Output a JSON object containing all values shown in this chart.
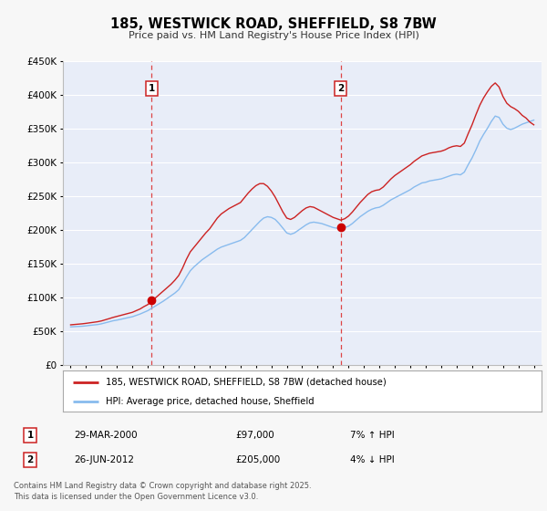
{
  "title": "185, WESTWICK ROAD, SHEFFIELD, S8 7BW",
  "subtitle": "Price paid vs. HM Land Registry's House Price Index (HPI)",
  "background_color": "#f7f7f7",
  "plot_bg_color": "#e8edf8",
  "grid_color": "#ffffff",
  "ylim": [
    0,
    450000
  ],
  "yticks": [
    0,
    50000,
    100000,
    150000,
    200000,
    250000,
    300000,
    350000,
    400000,
    450000
  ],
  "xlim_start": 1994.5,
  "xlim_end": 2025.5,
  "xticks": [
    1995,
    1996,
    1997,
    1998,
    1999,
    2000,
    2001,
    2002,
    2003,
    2004,
    2005,
    2006,
    2007,
    2008,
    2009,
    2010,
    2011,
    2012,
    2013,
    2014,
    2015,
    2016,
    2017,
    2018,
    2019,
    2020,
    2021,
    2022,
    2023,
    2024,
    2025
  ],
  "marker1_x": 2000.24,
  "marker1_y": 97000,
  "marker1_label": "1",
  "marker1_date": "29-MAR-2000",
  "marker1_price": "£97,000",
  "marker1_hpi": "7% ↑ HPI",
  "marker2_x": 2012.49,
  "marker2_y": 205000,
  "marker2_label": "2",
  "marker2_date": "26-JUN-2012",
  "marker2_price": "£205,000",
  "marker2_hpi": "4% ↓ HPI",
  "vline_color": "#dd4444",
  "marker_color": "#cc0000",
  "hpi_line_color": "#88bbee",
  "price_line_color": "#cc2222",
  "legend_line1": "185, WESTWICK ROAD, SHEFFIELD, S8 7BW (detached house)",
  "legend_line2": "HPI: Average price, detached house, Sheffield",
  "footer": "Contains HM Land Registry data © Crown copyright and database right 2025.\nThis data is licensed under the Open Government Licence v3.0.",
  "hpi_data": [
    [
      1995.0,
      57000
    ],
    [
      1995.25,
      57300
    ],
    [
      1995.5,
      57600
    ],
    [
      1995.75,
      57900
    ],
    [
      1996.0,
      58500
    ],
    [
      1996.25,
      59200
    ],
    [
      1996.5,
      59800
    ],
    [
      1996.75,
      60400
    ],
    [
      1997.0,
      61500
    ],
    [
      1997.25,
      63000
    ],
    [
      1997.5,
      64500
    ],
    [
      1997.75,
      66000
    ],
    [
      1998.0,
      67000
    ],
    [
      1998.25,
      68200
    ],
    [
      1998.5,
      69500
    ],
    [
      1998.75,
      70800
    ],
    [
      1999.0,
      72000
    ],
    [
      1999.25,
      74000
    ],
    [
      1999.5,
      76000
    ],
    [
      1999.75,
      78500
    ],
    [
      2000.0,
      81000
    ],
    [
      2000.25,
      84500
    ],
    [
      2000.5,
      88000
    ],
    [
      2000.75,
      91500
    ],
    [
      2001.0,
      95000
    ],
    [
      2001.25,
      99000
    ],
    [
      2001.5,
      103000
    ],
    [
      2001.75,
      107000
    ],
    [
      2002.0,
      112000
    ],
    [
      2002.25,
      121000
    ],
    [
      2002.5,
      131000
    ],
    [
      2002.75,
      140000
    ],
    [
      2003.0,
      146000
    ],
    [
      2003.25,
      151000
    ],
    [
      2003.5,
      156000
    ],
    [
      2003.75,
      160000
    ],
    [
      2004.0,
      164000
    ],
    [
      2004.25,
      168000
    ],
    [
      2004.5,
      172000
    ],
    [
      2004.75,
      175000
    ],
    [
      2005.0,
      177000
    ],
    [
      2005.25,
      179000
    ],
    [
      2005.5,
      181000
    ],
    [
      2005.75,
      183000
    ],
    [
      2006.0,
      185000
    ],
    [
      2006.25,
      189000
    ],
    [
      2006.5,
      195000
    ],
    [
      2006.75,
      201000
    ],
    [
      2007.0,
      207000
    ],
    [
      2007.25,
      213000
    ],
    [
      2007.5,
      218000
    ],
    [
      2007.75,
      220000
    ],
    [
      2008.0,
      219000
    ],
    [
      2008.25,
      216000
    ],
    [
      2008.5,
      210000
    ],
    [
      2008.75,
      203000
    ],
    [
      2009.0,
      196000
    ],
    [
      2009.25,
      194000
    ],
    [
      2009.5,
      196000
    ],
    [
      2009.75,
      200000
    ],
    [
      2010.0,
      204000
    ],
    [
      2010.25,
      208000
    ],
    [
      2010.5,
      211000
    ],
    [
      2010.75,
      212000
    ],
    [
      2011.0,
      211000
    ],
    [
      2011.25,
      210000
    ],
    [
      2011.5,
      208000
    ],
    [
      2011.75,
      206000
    ],
    [
      2012.0,
      204000
    ],
    [
      2012.25,
      203000
    ],
    [
      2012.5,
      203000
    ],
    [
      2012.75,
      204000
    ],
    [
      2013.0,
      206000
    ],
    [
      2013.25,
      210000
    ],
    [
      2013.5,
      215000
    ],
    [
      2013.75,
      220000
    ],
    [
      2014.0,
      224000
    ],
    [
      2014.25,
      228000
    ],
    [
      2014.5,
      231000
    ],
    [
      2014.75,
      233000
    ],
    [
      2015.0,
      234000
    ],
    [
      2015.25,
      237000
    ],
    [
      2015.5,
      241000
    ],
    [
      2015.75,
      245000
    ],
    [
      2016.0,
      248000
    ],
    [
      2016.25,
      251000
    ],
    [
      2016.5,
      254000
    ],
    [
      2016.75,
      257000
    ],
    [
      2017.0,
      260000
    ],
    [
      2017.25,
      264000
    ],
    [
      2017.5,
      267000
    ],
    [
      2017.75,
      270000
    ],
    [
      2018.0,
      271000
    ],
    [
      2018.25,
      273000
    ],
    [
      2018.5,
      274000
    ],
    [
      2018.75,
      275000
    ],
    [
      2019.0,
      276000
    ],
    [
      2019.25,
      278000
    ],
    [
      2019.5,
      280000
    ],
    [
      2019.75,
      282000
    ],
    [
      2020.0,
      283000
    ],
    [
      2020.25,
      282000
    ],
    [
      2020.5,
      286000
    ],
    [
      2020.75,
      297000
    ],
    [
      2021.0,
      307000
    ],
    [
      2021.25,
      319000
    ],
    [
      2021.5,
      332000
    ],
    [
      2021.75,
      342000
    ],
    [
      2022.0,
      351000
    ],
    [
      2022.25,
      361000
    ],
    [
      2022.5,
      369000
    ],
    [
      2022.75,
      367000
    ],
    [
      2023.0,
      357000
    ],
    [
      2023.25,
      351000
    ],
    [
      2023.5,
      349000
    ],
    [
      2023.75,
      351000
    ],
    [
      2024.0,
      354000
    ],
    [
      2024.25,
      357000
    ],
    [
      2024.5,
      359000
    ],
    [
      2024.75,
      361000
    ],
    [
      2025.0,
      363000
    ]
  ],
  "price_data": [
    [
      1995.0,
      60000
    ],
    [
      1995.25,
      60500
    ],
    [
      1995.5,
      61000
    ],
    [
      1995.75,
      61500
    ],
    [
      1996.0,
      62200
    ],
    [
      1996.25,
      63000
    ],
    [
      1996.5,
      63800
    ],
    [
      1996.75,
      64600
    ],
    [
      1997.0,
      65800
    ],
    [
      1997.25,
      67500
    ],
    [
      1997.5,
      69200
    ],
    [
      1997.75,
      71000
    ],
    [
      1998.0,
      72500
    ],
    [
      1998.25,
      74000
    ],
    [
      1998.5,
      75500
    ],
    [
      1998.75,
      77000
    ],
    [
      1999.0,
      78500
    ],
    [
      1999.25,
      81000
    ],
    [
      1999.5,
      83500
    ],
    [
      1999.75,
      87000
    ],
    [
      2000.0,
      90000
    ],
    [
      2000.25,
      95000
    ],
    [
      2000.5,
      100000
    ],
    [
      2000.75,
      105000
    ],
    [
      2001.0,
      110000
    ],
    [
      2001.25,
      115000
    ],
    [
      2001.5,
      120000
    ],
    [
      2001.75,
      126000
    ],
    [
      2002.0,
      133000
    ],
    [
      2002.25,
      144000
    ],
    [
      2002.5,
      157000
    ],
    [
      2002.75,
      168000
    ],
    [
      2003.0,
      175000
    ],
    [
      2003.25,
      182000
    ],
    [
      2003.5,
      189000
    ],
    [
      2003.75,
      196000
    ],
    [
      2004.0,
      202000
    ],
    [
      2004.25,
      210000
    ],
    [
      2004.5,
      218000
    ],
    [
      2004.75,
      224000
    ],
    [
      2005.0,
      228000
    ],
    [
      2005.25,
      232000
    ],
    [
      2005.5,
      235000
    ],
    [
      2005.75,
      238000
    ],
    [
      2006.0,
      241000
    ],
    [
      2006.25,
      248000
    ],
    [
      2006.5,
      255000
    ],
    [
      2006.75,
      261000
    ],
    [
      2007.0,
      266000
    ],
    [
      2007.25,
      269000
    ],
    [
      2007.5,
      269000
    ],
    [
      2007.75,
      265000
    ],
    [
      2008.0,
      258000
    ],
    [
      2008.25,
      249000
    ],
    [
      2008.5,
      238000
    ],
    [
      2008.75,
      227000
    ],
    [
      2009.0,
      218000
    ],
    [
      2009.25,
      216000
    ],
    [
      2009.5,
      219000
    ],
    [
      2009.75,
      224000
    ],
    [
      2010.0,
      229000
    ],
    [
      2010.25,
      233000
    ],
    [
      2010.5,
      235000
    ],
    [
      2010.75,
      234000
    ],
    [
      2011.0,
      231000
    ],
    [
      2011.25,
      228000
    ],
    [
      2011.5,
      225000
    ],
    [
      2011.75,
      222000
    ],
    [
      2012.0,
      219000
    ],
    [
      2012.25,
      217000
    ],
    [
      2012.5,
      215000
    ],
    [
      2012.75,
      217000
    ],
    [
      2013.0,
      221000
    ],
    [
      2013.25,
      227000
    ],
    [
      2013.5,
      234000
    ],
    [
      2013.75,
      241000
    ],
    [
      2014.0,
      247000
    ],
    [
      2014.25,
      253000
    ],
    [
      2014.5,
      257000
    ],
    [
      2014.75,
      259000
    ],
    [
      2015.0,
      260000
    ],
    [
      2015.25,
      264000
    ],
    [
      2015.5,
      270000
    ],
    [
      2015.75,
      276000
    ],
    [
      2016.0,
      281000
    ],
    [
      2016.25,
      285000
    ],
    [
      2016.5,
      289000
    ],
    [
      2016.75,
      293000
    ],
    [
      2017.0,
      297000
    ],
    [
      2017.25,
      302000
    ],
    [
      2017.5,
      306000
    ],
    [
      2017.75,
      310000
    ],
    [
      2018.0,
      312000
    ],
    [
      2018.25,
      314000
    ],
    [
      2018.5,
      315000
    ],
    [
      2018.75,
      316000
    ],
    [
      2019.0,
      317000
    ],
    [
      2019.25,
      319000
    ],
    [
      2019.5,
      322000
    ],
    [
      2019.75,
      324000
    ],
    [
      2020.0,
      325000
    ],
    [
      2020.25,
      324000
    ],
    [
      2020.5,
      329000
    ],
    [
      2020.75,
      343000
    ],
    [
      2021.0,
      356000
    ],
    [
      2021.25,
      371000
    ],
    [
      2021.5,
      385000
    ],
    [
      2021.75,
      396000
    ],
    [
      2022.0,
      405000
    ],
    [
      2022.25,
      413000
    ],
    [
      2022.5,
      418000
    ],
    [
      2022.75,
      412000
    ],
    [
      2023.0,
      398000
    ],
    [
      2023.25,
      388000
    ],
    [
      2023.5,
      383000
    ],
    [
      2023.75,
      380000
    ],
    [
      2024.0,
      376000
    ],
    [
      2024.25,
      370000
    ],
    [
      2024.5,
      366000
    ],
    [
      2024.75,
      360000
    ],
    [
      2025.0,
      356000
    ]
  ]
}
